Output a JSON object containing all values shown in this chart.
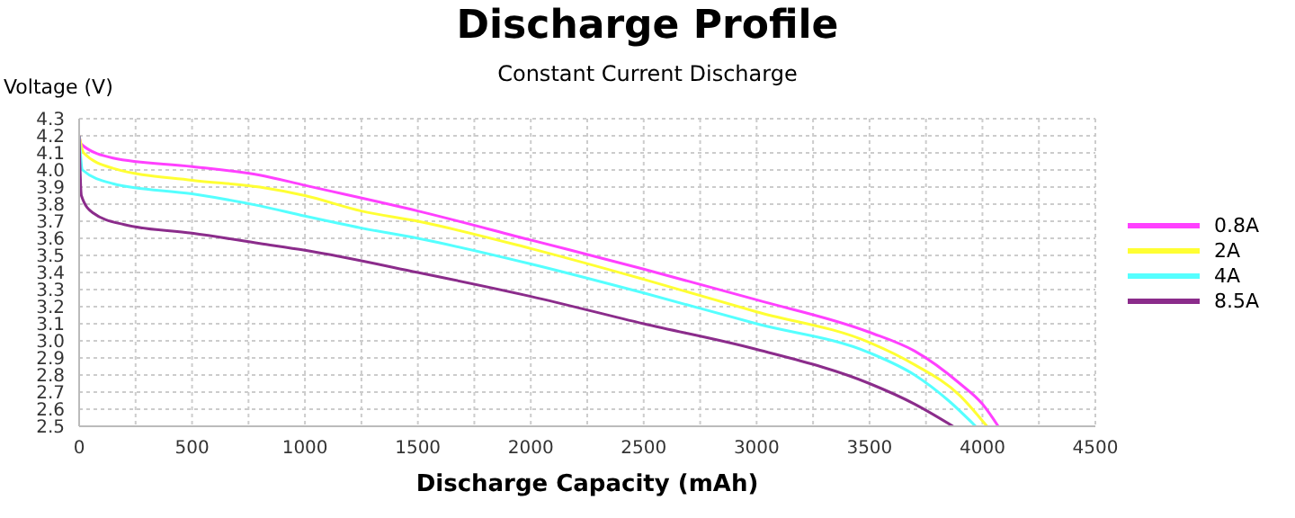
{
  "chart_data": {
    "type": "line",
    "title": "Discharge Profile",
    "subtitle": "Constant Current Discharge",
    "xlabel": "Discharge Capacity (mAh)",
    "ylabel": "Voltage (V)",
    "xlim": [
      0,
      4500
    ],
    "ylim": [
      2.5,
      4.3
    ],
    "xticks": [
      0,
      {
        "value": 250,
        "label": null
      },
      500,
      {
        "value": 750,
        "label": null
      },
      1000,
      {
        "value": 1250,
        "label": null
      },
      1500,
      {
        "value": 1750,
        "label": null
      },
      2000,
      {
        "value": 2250,
        "label": null
      },
      2500,
      {
        "value": 2750,
        "label": null
      },
      3000,
      {
        "value": 3250,
        "label": null
      },
      3500,
      {
        "value": 3750,
        "label": null
      },
      4000,
      {
        "value": 4250,
        "label": null
      },
      4500
    ],
    "yticks": [
      2.5,
      2.6,
      2.7,
      2.8,
      2.9,
      {
        "value": 3,
        "label": "3.0"
      },
      3.1,
      3.2,
      3.3,
      3.4,
      3.5,
      3.6,
      3.7,
      3.8,
      3.9,
      {
        "value": 4,
        "label": "4.0"
      },
      4.1,
      4.2,
      4.3
    ],
    "grid": true,
    "legend": "right",
    "marker": "none",
    "line_style": "solid",
    "series": [
      {
        "name": "0.8A",
        "color": "#ff40ff",
        "x": [
          0,
          10,
          150,
          500,
          800,
          1000,
          1500,
          2000,
          2500,
          3000,
          3500,
          3700,
          3900,
          4000,
          4070
        ],
        "values": [
          4.2,
          4.15,
          4.07,
          4.02,
          3.97,
          3.91,
          3.76,
          3.59,
          3.42,
          3.24,
          3.05,
          2.94,
          2.75,
          2.63,
          2.5
        ]
      },
      {
        "name": "2A",
        "color": "#ffff33",
        "x": [
          0,
          20,
          150,
          500,
          800,
          1000,
          1250,
          1500,
          2000,
          2500,
          3000,
          3500,
          3700,
          3900,
          4020
        ],
        "values": [
          4.2,
          4.1,
          4.01,
          3.94,
          3.9,
          3.85,
          3.76,
          3.7,
          3.54,
          3.36,
          3.17,
          2.99,
          2.86,
          2.68,
          2.5
        ]
      },
      {
        "name": "4A",
        "color": "#55ffff",
        "x": [
          0,
          15,
          150,
          500,
          800,
          1000,
          1250,
          1500,
          2000,
          2500,
          3000,
          3500,
          3700,
          3850,
          3970
        ],
        "values": [
          4.2,
          4.0,
          3.92,
          3.86,
          3.79,
          3.73,
          3.66,
          3.6,
          3.45,
          3.28,
          3.1,
          2.93,
          2.8,
          2.65,
          2.5
        ]
      },
      {
        "name": "8.5A",
        "color": "#8b2c8b",
        "x": [
          0,
          10,
          60,
          200,
          500,
          800,
          1000,
          1500,
          2000,
          2500,
          3000,
          3500,
          3700,
          3870
        ],
        "values": [
          4.2,
          3.85,
          3.75,
          3.68,
          3.63,
          3.57,
          3.53,
          3.4,
          3.26,
          3.1,
          2.95,
          2.75,
          2.63,
          2.5
        ]
      }
    ]
  }
}
